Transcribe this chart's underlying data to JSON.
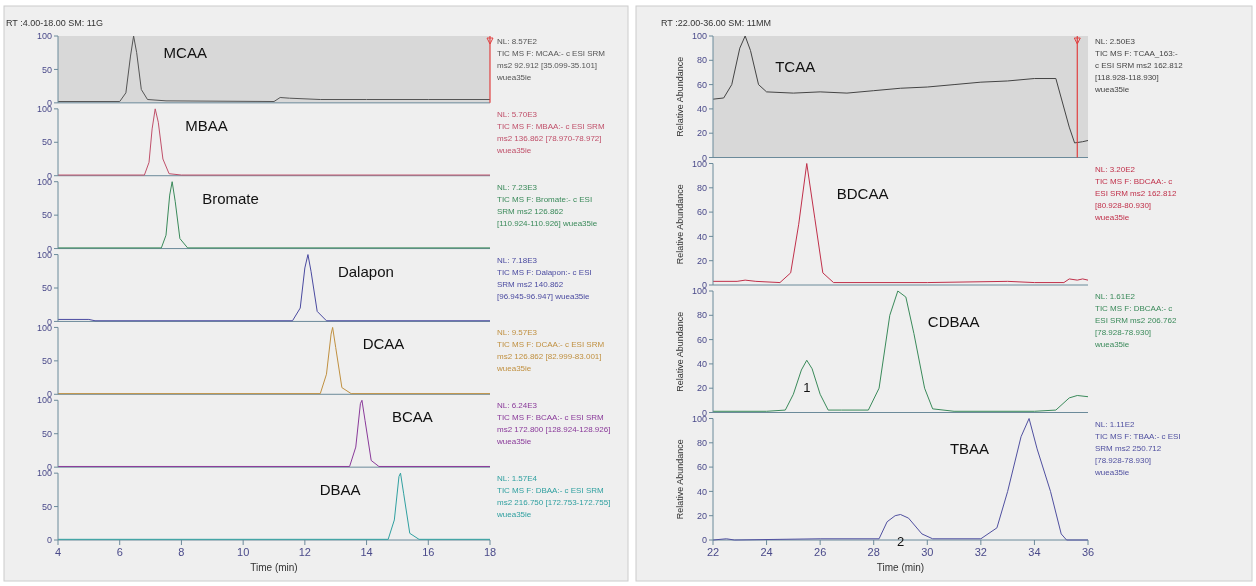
{
  "chart_data": [
    {
      "type": "line",
      "title": "RT :4.00-18.00 SM: 11G",
      "xlim": [
        4,
        18
      ],
      "ylim": [
        0,
        100
      ],
      "yticks": [
        0,
        50,
        100
      ],
      "tick_labels": "y",
      "bands": [
        {
          "axis": "x",
          "from": 4,
          "to": 18,
          "color": "#d8d8d8"
        }
      ],
      "ref_lines": [
        {
          "axis": "x",
          "value": 18,
          "color": "#e04040"
        }
      ],
      "series": [
        {
          "name": "MCAA",
          "color": "#555555",
          "x": [
            4,
            6.0,
            6.2,
            6.35,
            6.45,
            6.55,
            6.7,
            6.9,
            7.5,
            11.0,
            11.2,
            11.5,
            12.5,
            14,
            16,
            18
          ],
          "values": [
            2,
            2,
            15,
            70,
            100,
            75,
            20,
            5,
            3,
            2,
            8,
            7,
            5,
            5,
            5,
            5
          ]
        }
      ],
      "annotations": [
        "NL: 8.57E2",
        "TIC  MS  F: MCAA:- c ESI SRM",
        "ms2 92.912 [35.099-35.101]",
        "wuea35ie"
      ]
    },
    {
      "type": "line",
      "xlim": [
        4,
        18
      ],
      "ylim": [
        0,
        100
      ],
      "yticks": [
        0,
        50,
        100
      ],
      "tick_labels": "y",
      "series": [
        {
          "name": "MBAA",
          "color": "#c0506a",
          "x": [
            4,
            6.8,
            6.95,
            7.05,
            7.15,
            7.25,
            7.4,
            7.6,
            8,
            18
          ],
          "values": [
            1,
            1,
            20,
            70,
            100,
            80,
            25,
            3,
            1,
            1
          ]
        }
      ],
      "annotations": [
        "NL: 5.70E3",
        "TIC  MS  F: MBAA:- c ESI SRM",
        "ms2 136.862 [78.970-78.972]",
        "wuea35ie"
      ]
    },
    {
      "type": "line",
      "xlim": [
        4,
        18
      ],
      "ylim": [
        0,
        100
      ],
      "yticks": [
        0,
        50,
        100
      ],
      "tick_labels": "y",
      "series": [
        {
          "name": "Bromate",
          "color": "#3a8a5a",
          "x": [
            4,
            7.35,
            7.5,
            7.62,
            7.7,
            7.8,
            7.95,
            8.2,
            18
          ],
          "values": [
            1,
            1,
            20,
            80,
            100,
            70,
            15,
            1,
            1
          ]
        }
      ],
      "annotations": [
        "NL: 7.23E3",
        "TIC  MS  F: Bromate:- c ESI",
        "SRM ms2 126.862",
        "[110.924-110.926] wuea35ie"
      ]
    },
    {
      "type": "line",
      "xlim": [
        4,
        18
      ],
      "ylim": [
        0,
        100
      ],
      "yticks": [
        0,
        50,
        100
      ],
      "tick_labels": "y",
      "series": [
        {
          "name": "Dalapon",
          "color": "#4a4aa0",
          "x": [
            4,
            5,
            5.2,
            11.6,
            11.85,
            12.0,
            12.1,
            12.2,
            12.4,
            12.7,
            18
          ],
          "values": [
            3,
            3,
            1,
            1,
            20,
            80,
            100,
            75,
            15,
            1,
            1
          ]
        }
      ],
      "annotations": [
        "NL: 7.18E3",
        "TIC  MS  F: Dalapon:- c ESI",
        "SRM ms2 140.862",
        "[96.945-96.947] wuea35ie"
      ]
    },
    {
      "type": "line",
      "xlim": [
        4,
        18
      ],
      "ylim": [
        0,
        100
      ],
      "yticks": [
        0,
        50,
        100
      ],
      "tick_labels": "y",
      "series": [
        {
          "name": "DCAA",
          "color": "#c09040",
          "x": [
            4,
            12.5,
            12.7,
            12.85,
            12.9,
            13.0,
            13.2,
            13.5,
            18
          ],
          "values": [
            1,
            1,
            30,
            90,
            100,
            70,
            10,
            1,
            1
          ]
        }
      ],
      "annotations": [
        "NL: 9.57E3",
        "TIC  MS  F: DCAA:- c ESI SRM",
        "ms2 126.862 [82.999-83.001]",
        "wuea35ie"
      ]
    },
    {
      "type": "line",
      "xlim": [
        4,
        18
      ],
      "ylim": [
        0,
        100
      ],
      "yticks": [
        0,
        50,
        100
      ],
      "tick_labels": "y",
      "series": [
        {
          "name": "BCAA",
          "color": "#8a3a9a",
          "x": [
            4,
            13.45,
            13.65,
            13.8,
            13.85,
            13.95,
            14.15,
            14.4,
            18
          ],
          "values": [
            1,
            1,
            30,
            95,
            100,
            70,
            10,
            1,
            1
          ]
        }
      ],
      "annotations": [
        "NL: 6.24E3",
        "TIC  MS  F: BCAA:- c ESI SRM",
        "ms2 172.800 [128.924-128.926]",
        "wuea35ie"
      ]
    },
    {
      "type": "line",
      "xlim": [
        4,
        18
      ],
      "ylim": [
        0,
        100
      ],
      "yticks": [
        0,
        50,
        100
      ],
      "xticks": [
        4,
        6,
        8,
        10,
        12,
        14,
        16,
        18
      ],
      "xlabel": "Time (min)",
      "series": [
        {
          "name": "DBAA",
          "color": "#30a0a0",
          "x": [
            4,
            14.7,
            14.9,
            15.05,
            15.1,
            15.2,
            15.4,
            15.7,
            18
          ],
          "values": [
            1,
            1,
            30,
            95,
            100,
            70,
            10,
            1,
            1
          ]
        }
      ],
      "annotations": [
        "NL: 1.57E4",
        "TIC  MS  F: DBAA:- c ESI SRM",
        "ms2 216.750 [172.753-172.755]",
        "wuea35ie"
      ]
    },
    {
      "type": "line",
      "title": "RT :22.00-36.00 SM: 11MM",
      "ylabel": "Relative Abundance",
      "xlim": [
        22,
        36
      ],
      "ylim": [
        0,
        100
      ],
      "yticks": [
        0,
        20,
        40,
        60,
        80,
        100
      ],
      "tick_labels": "y",
      "bands": [
        {
          "axis": "x",
          "from": 22,
          "to": 36,
          "color": "#d8d8d8"
        }
      ],
      "ref_lines": [
        {
          "axis": "x",
          "value": 35.6,
          "color": "#e04040"
        }
      ],
      "series": [
        {
          "name": "TCAA",
          "color": "#444444",
          "x": [
            22,
            22.4,
            22.7,
            23.0,
            23.2,
            23.4,
            23.7,
            24,
            25,
            26,
            27,
            28,
            29,
            30,
            31,
            32,
            33,
            34,
            34.8,
            35.3,
            35.5,
            35.8,
            36
          ],
          "values": [
            48,
            49,
            60,
            90,
            100,
            88,
            60,
            54,
            53,
            54,
            53,
            55,
            57,
            58,
            60,
            62,
            63,
            65,
            65,
            25,
            12,
            13,
            14
          ]
        }
      ],
      "annotations": [
        "NL: 2.50E3",
        "TIC  MS  F: TCAA_163:-",
        "c ESI SRM ms2 162.812",
        "[118.928-118.930]",
        "wuea35ie"
      ]
    },
    {
      "type": "line",
      "ylabel": "Relative Abundance",
      "xlim": [
        22,
        36
      ],
      "ylim": [
        0,
        100
      ],
      "yticks": [
        0,
        20,
        40,
        60,
        80,
        100
      ],
      "tick_labels": "y",
      "series": [
        {
          "name": "BDCAA",
          "color": "#c0304a",
          "x": [
            22,
            22.9,
            23.2,
            23.6,
            24.5,
            24.9,
            25.2,
            25.5,
            25.8,
            26.1,
            26.5,
            30,
            33,
            34,
            35.1,
            35.3,
            35.6,
            35.8,
            36
          ],
          "values": [
            3,
            3,
            4,
            3,
            2,
            10,
            50,
            100,
            55,
            10,
            2,
            2,
            3,
            2,
            2,
            5,
            4,
            5,
            4
          ]
        }
      ],
      "annotations": [
        "NL: 3.20E2",
        "TIC  MS  F: BDCAA:- c",
        "ESI SRM ms2 162.812",
        "[80.928-80.930]",
        "wuea35ie"
      ]
    },
    {
      "type": "line",
      "ylabel": "Relative Abundance",
      "xlim": [
        22,
        36
      ],
      "ylim": [
        0,
        100
      ],
      "yticks": [
        0,
        20,
        40,
        60,
        80,
        100
      ],
      "tick_labels": "y",
      "series": [
        {
          "name": "CDBAA",
          "color": "#3a8a5a",
          "x": [
            22,
            24,
            24.7,
            25.0,
            25.3,
            25.5,
            25.7,
            26.0,
            26.3,
            26.8,
            27.8,
            28.2,
            28.6,
            28.9,
            29.2,
            29.5,
            29.9,
            30.2,
            31,
            34,
            34.8,
            35.3,
            35.6,
            36
          ],
          "values": [
            1,
            1,
            2,
            15,
            35,
            43,
            36,
            15,
            2,
            2,
            2,
            20,
            80,
            100,
            95,
            65,
            20,
            3,
            1,
            1,
            2,
            12,
            14,
            13
          ]
        }
      ],
      "annotations": [
        {
          "text": "1",
          "x": 25.5,
          "y": 43
        },
        "NL: 1.61E2",
        "TIC  MS  F: DBCAA:- c",
        "ESI SRM ms2 206.762",
        "[78.928-78.930]",
        "wuea35ie"
      ]
    },
    {
      "type": "line",
      "ylabel": "Relative Abundance",
      "xlim": [
        22,
        36
      ],
      "ylim": [
        0,
        100
      ],
      "yticks": [
        0,
        20,
        40,
        60,
        80,
        100
      ],
      "xticks": [
        22,
        24,
        26,
        28,
        30,
        32,
        34,
        36
      ],
      "xlabel": "Time (min)",
      "series": [
        {
          "name": "TBAA",
          "color": "#5050a0",
          "x": [
            22,
            22.5,
            22.8,
            26,
            28.2,
            28.5,
            28.8,
            29,
            29.3,
            29.8,
            30.2,
            32,
            32.6,
            33,
            33.5,
            33.8,
            34.1,
            34.6,
            35.0,
            35.2,
            36
          ],
          "values": [
            0,
            1,
            0,
            1,
            1,
            15,
            20,
            21,
            18,
            5,
            1,
            1,
            10,
            40,
            85,
            100,
            75,
            40,
            5,
            0,
            0
          ]
        }
      ],
      "annotations": [
        {
          "text": "2",
          "x": 29,
          "y": 21
        },
        "NL: 1.11E2",
        "TIC  MS  F: TBAA:- c ESI",
        "SRM ms2 250.712",
        "[78.928-78.930]",
        "wuea35ie"
      ]
    }
  ]
}
